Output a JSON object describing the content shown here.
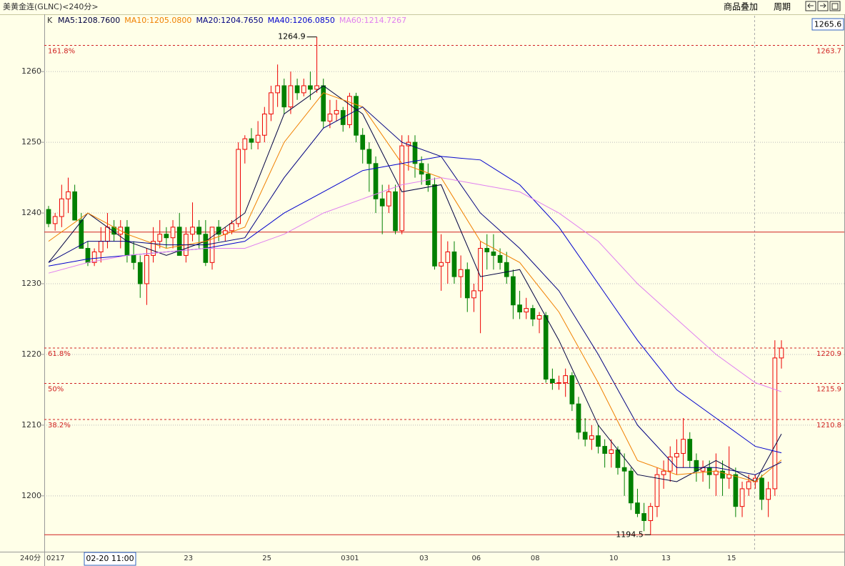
{
  "header": {
    "title": "美黄金连(GLNC)<240分>",
    "menu": [
      "商品叠加",
      "周期"
    ]
  },
  "chart_data": {
    "type": "candlestick",
    "period_label": "240分",
    "legend_prefix": "K",
    "cursor_price": 1265.6,
    "cursor_time_label": "02-20 11:00",
    "up_color": "#ee0000",
    "down_color": "#008000",
    "grid": true,
    "ylim": [
      1192.1,
      1267.9
    ],
    "yticks": [
      1200,
      1210,
      1220,
      1230,
      1240,
      1250,
      1260
    ],
    "categories": [
      "0217",
      null,
      null,
      null,
      null,
      null,
      null,
      null,
      null,
      null,
      null,
      null,
      null,
      null,
      null,
      null,
      null,
      null,
      null,
      null,
      null,
      "23",
      null,
      null,
      null,
      null,
      null,
      null,
      null,
      null,
      null,
      null,
      null,
      "25",
      null,
      null,
      null,
      null,
      null,
      null,
      null,
      null,
      null,
      null,
      null,
      "0301",
      null,
      null,
      null,
      null,
      null,
      null,
      null,
      null,
      null,
      null,
      null,
      "03",
      null,
      null,
      null,
      null,
      null,
      null,
      null,
      "06",
      null,
      null,
      null,
      null,
      null,
      null,
      null,
      null,
      "08",
      null,
      null,
      null,
      null,
      null,
      null,
      null,
      null,
      null,
      null,
      null,
      "10",
      null,
      null,
      null,
      null,
      null,
      null,
      null,
      "13",
      null,
      null,
      null,
      null,
      null,
      null,
      null,
      null,
      null,
      "15",
      null,
      null,
      null,
      null,
      null,
      null,
      null,
      null
    ],
    "open": [
      1240.5,
      1238.5,
      1239.5,
      1242,
      1243,
      1239,
      1235,
      1233,
      1234.5,
      1236,
      1238,
      1237,
      1238,
      1234,
      1233,
      1230,
      1234,
      1236,
      1237,
      1236.5,
      1238,
      1234,
      1237,
      1238,
      1237,
      1233,
      1238,
      1237,
      1237.5,
      1238.5,
      1249,
      1250.5,
      1250,
      1251,
      1254,
      1257,
      1258,
      1255,
      1258,
      1257,
      1258,
      1257.5,
      1258,
      1253,
      1254,
      1254.5,
      1252.5,
      1256.5,
      1251,
      1249,
      1247,
      1242,
      1241,
      1243,
      1237.5,
      1249.5,
      1250,
      1247,
      1245.5,
      1244,
      1232.5,
      1233,
      1234.5,
      1231,
      1232,
      1228,
      1229,
      1235,
      1234.5,
      1234,
      1233,
      1231,
      1227,
      1226,
      1226.5,
      1225,
      1225.5,
      1216.5,
      1216,
      1216,
      1217,
      1213,
      1209,
      1208,
      1208.5,
      1207,
      1206,
      1206.5,
      1204,
      1203.5,
      1199,
      1197.5,
      1196.5,
      1198.5,
      1203,
      1203.5,
      1205.5,
      1206,
      1208,
      1205,
      1203.5,
      1204,
      1203,
      1203.5,
      1202.5,
      1203,
      1198.5,
      1201,
      1202,
      1202.5,
      1199.5,
      1201,
      1219.5
    ],
    "high": [
      1241,
      1240,
      1244,
      1245,
      1244,
      1240,
      1236,
      1235,
      1238,
      1240,
      1239,
      1239,
      1239,
      1236,
      1234,
      1235,
      1238,
      1239,
      1238,
      1239,
      1240,
      1238,
      1241.5,
      1239,
      1239,
      1238,
      1239,
      1238,
      1239,
      1250,
      1251,
      1252,
      1253,
      1255,
      1258,
      1261,
      1259,
      1260,
      1259,
      1259,
      1260,
      1264.9,
      1259,
      1256,
      1256,
      1255,
      1257,
      1257,
      1252,
      1250,
      1248,
      1244,
      1244,
      1244,
      1251,
      1251,
      1251,
      1248,
      1247,
      1245,
      1237,
      1236,
      1236,
      1234,
      1233,
      1230,
      1236,
      1237,
      1237,
      1235,
      1234.5,
      1232,
      1229,
      1228,
      1227,
      1226,
      1226,
      1218,
      1217,
      1218,
      1217.5,
      1214,
      1211,
      1210,
      1210,
      1208,
      1208,
      1207,
      1206,
      1204,
      1201,
      1199,
      1199,
      1204,
      1205,
      1207,
      1208,
      1211,
      1209,
      1206,
      1205,
      1205,
      1206,
      1205,
      1207,
      1204,
      1202,
      1203,
      1203,
      1203,
      1202,
      1222,
      1222
    ],
    "low": [
      1238,
      1237.5,
      1238,
      1240,
      1239,
      1235,
      1232.5,
      1232.5,
      1233,
      1235,
      1236,
      1235,
      1233,
      1232,
      1228,
      1227,
      1233,
      1235,
      1235,
      1235,
      1234,
      1233,
      1236,
      1235,
      1232.5,
      1232,
      1236,
      1236,
      1237,
      1238,
      1247,
      1249,
      1249,
      1250,
      1253,
      1255,
      1254,
      1254,
      1256,
      1256.5,
      1256,
      1257,
      1252,
      1252,
      1253,
      1251.5,
      1252,
      1250,
      1247,
      1243,
      1240,
      1237,
      1240,
      1237,
      1237,
      1246,
      1245,
      1244,
      1243,
      1232,
      1229,
      1230,
      1230,
      1228,
      1226,
      1226,
      1223,
      1232,
      1232,
      1232,
      1230,
      1225,
      1225,
      1225,
      1224,
      1223,
      1216,
      1215,
      1215,
      1214,
      1212,
      1208,
      1207,
      1206.5,
      1206,
      1204,
      1204,
      1203,
      1200,
      1198,
      1197,
      1195,
      1194.5,
      1197,
      1201,
      1202,
      1203,
      1204,
      1204,
      1202,
      1202,
      1201,
      1200,
      1200,
      1201,
      1197,
      1197,
      1200,
      1201,
      1198,
      1197,
      1200,
      1218
    ],
    "close": [
      1238.5,
      1239.5,
      1242,
      1243,
      1239,
      1235,
      1233,
      1234.5,
      1236,
      1238,
      1237,
      1238,
      1234,
      1233,
      1230,
      1234,
      1236,
      1237,
      1236.5,
      1238,
      1234,
      1237,
      1238,
      1237,
      1233,
      1238,
      1237,
      1237.5,
      1238.5,
      1249,
      1250.5,
      1250,
      1251,
      1254,
      1257,
      1258,
      1255,
      1258,
      1257,
      1258,
      1257.5,
      1258,
      1253,
      1254,
      1254.5,
      1252.5,
      1256.5,
      1251,
      1249,
      1247,
      1242,
      1241,
      1243,
      1237.5,
      1249.5,
      1250,
      1247,
      1245.5,
      1244,
      1232.5,
      1233,
      1234.5,
      1231,
      1232,
      1228,
      1229,
      1235,
      1234.5,
      1234,
      1233,
      1231,
      1227,
      1226,
      1226.5,
      1225,
      1225.5,
      1216.5,
      1216,
      1216,
      1217,
      1213,
      1209,
      1208,
      1208.5,
      1207,
      1206,
      1206.5,
      1204,
      1203.5,
      1199,
      1197.5,
      1196.5,
      1198.5,
      1203,
      1203.5,
      1205.5,
      1206,
      1208,
      1205,
      1203.5,
      1204,
      1203,
      1203.5,
      1202.5,
      1203,
      1198.5,
      1201,
      1202,
      1202.5,
      1199.5,
      1201,
      1219.5,
      1220.9
    ],
    "series": [
      {
        "name": "MA5:1208.7600",
        "color": "#000040",
        "x": [
          0,
          6,
          12,
          18,
          24,
          30,
          36,
          42,
          48,
          54,
          60,
          66,
          72,
          78,
          84,
          90,
          96,
          102,
          108,
          112
        ],
        "values": [
          1233,
          1240,
          1236,
          1234,
          1236,
          1240,
          1254,
          1258,
          1254,
          1243,
          1244,
          1231,
          1232,
          1222,
          1210,
          1203,
          1202,
          1205,
          1202,
          1208.76
        ]
      },
      {
        "name": "MA10:1205.0800",
        "color": "#f08000",
        "x": [
          0,
          6,
          12,
          18,
          24,
          30,
          36,
          42,
          48,
          54,
          60,
          66,
          72,
          78,
          84,
          90,
          96,
          102,
          108,
          112
        ],
        "values": [
          1236,
          1240,
          1237,
          1235,
          1236,
          1238,
          1250,
          1257,
          1255,
          1247,
          1245,
          1236,
          1233,
          1226,
          1216,
          1205,
          1203,
          1203.5,
          1202,
          1205.08
        ]
      },
      {
        "name": "MA20:1204.7650",
        "color": "#000080",
        "x": [
          0,
          6,
          12,
          18,
          24,
          30,
          36,
          42,
          48,
          54,
          60,
          66,
          72,
          78,
          84,
          90,
          96,
          102,
          108,
          112
        ],
        "values": [
          1233,
          1236,
          1236,
          1235.5,
          1235.5,
          1236.5,
          1245,
          1252,
          1255,
          1250,
          1248,
          1240,
          1235,
          1229,
          1220,
          1210,
          1204,
          1204,
          1203,
          1204.765
        ]
      },
      {
        "name": "MA40:1206.0850",
        "color": "#0000cc",
        "x": [
          0,
          6,
          12,
          18,
          24,
          30,
          36,
          42,
          48,
          54,
          60,
          66,
          72,
          78,
          84,
          90,
          96,
          102,
          108,
          112
        ],
        "values": [
          1232.5,
          1233.5,
          1234,
          1234.5,
          1235,
          1236,
          1240,
          1243,
          1246,
          1247,
          1248,
          1247.5,
          1244,
          1238,
          1230,
          1222,
          1215,
          1211,
          1207,
          1206.085
        ]
      },
      {
        "name": "MA60:1214.7267",
        "color": "#e080f0",
        "x": [
          0,
          6,
          12,
          18,
          24,
          30,
          36,
          42,
          48,
          54,
          60,
          66,
          72,
          78,
          84,
          90,
          96,
          102,
          108,
          112
        ],
        "values": [
          1231.5,
          1233,
          1234,
          1234.5,
          1235,
          1235,
          1237,
          1240,
          1242,
          1244,
          1245,
          1244,
          1243,
          1240,
          1236,
          1230,
          1225,
          1220,
          1216,
          1214.7267
        ]
      }
    ],
    "fib_levels": [
      {
        "label": "161.8%",
        "value": 1263.7
      },
      {
        "label": "61.8%",
        "value": 1220.9
      },
      {
        "label": "50%",
        "value": 1215.9
      },
      {
        "label": "38.2%",
        "value": 1210.8
      }
    ],
    "hlines": [
      1237.3,
      1194.5
    ]
  }
}
